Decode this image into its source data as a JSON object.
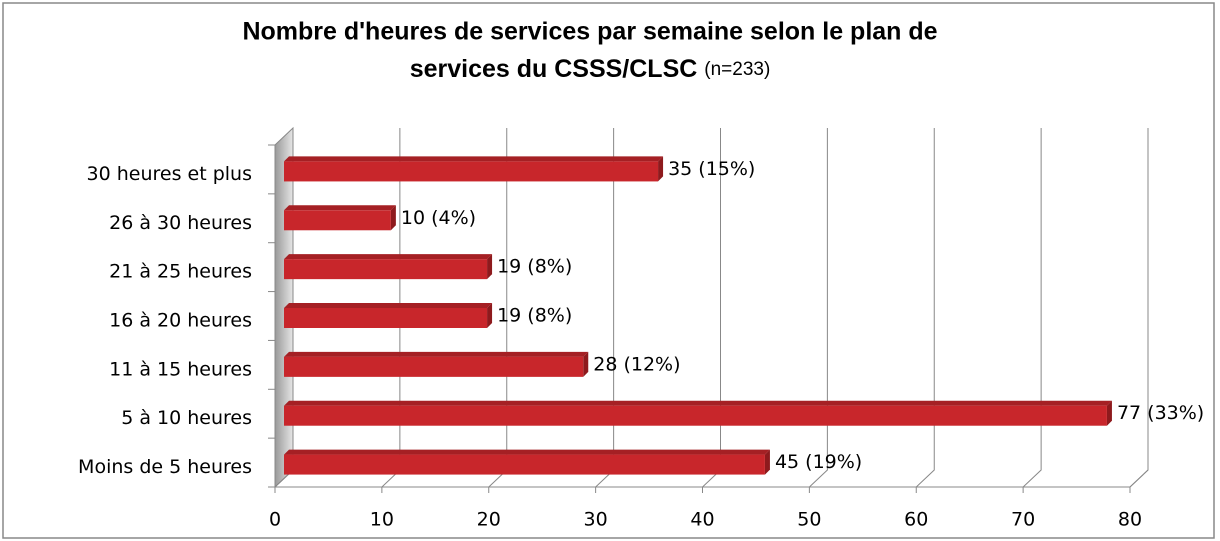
{
  "chart_data": {
    "type": "bar",
    "orientation": "horizontal",
    "title": [
      "Nombre d'heures de services par semaine selon le plan de",
      "services du CSSS/CLSC"
    ],
    "subtitle": "(n=233)",
    "categories": [
      "30 heures et plus",
      "26 à 30 heures",
      "21 à 25 heures",
      "16 à 20 heures",
      "11 à 15 heures",
      "5 à 10 heures",
      "Moins de 5 heures"
    ],
    "values": [
      35,
      10,
      19,
      19,
      28,
      77,
      45
    ],
    "value_labels": [
      "35 (15%)",
      "10 (4%)",
      "19 (8%)",
      "19 (8%)",
      "28 (12%)",
      "77 (33%)",
      "45 (19%)"
    ],
    "color": "#c8262b",
    "xlim": [
      0,
      80
    ],
    "xticks": [
      0,
      10,
      20,
      30,
      40,
      50,
      60,
      70,
      80
    ],
    "grid": true
  }
}
